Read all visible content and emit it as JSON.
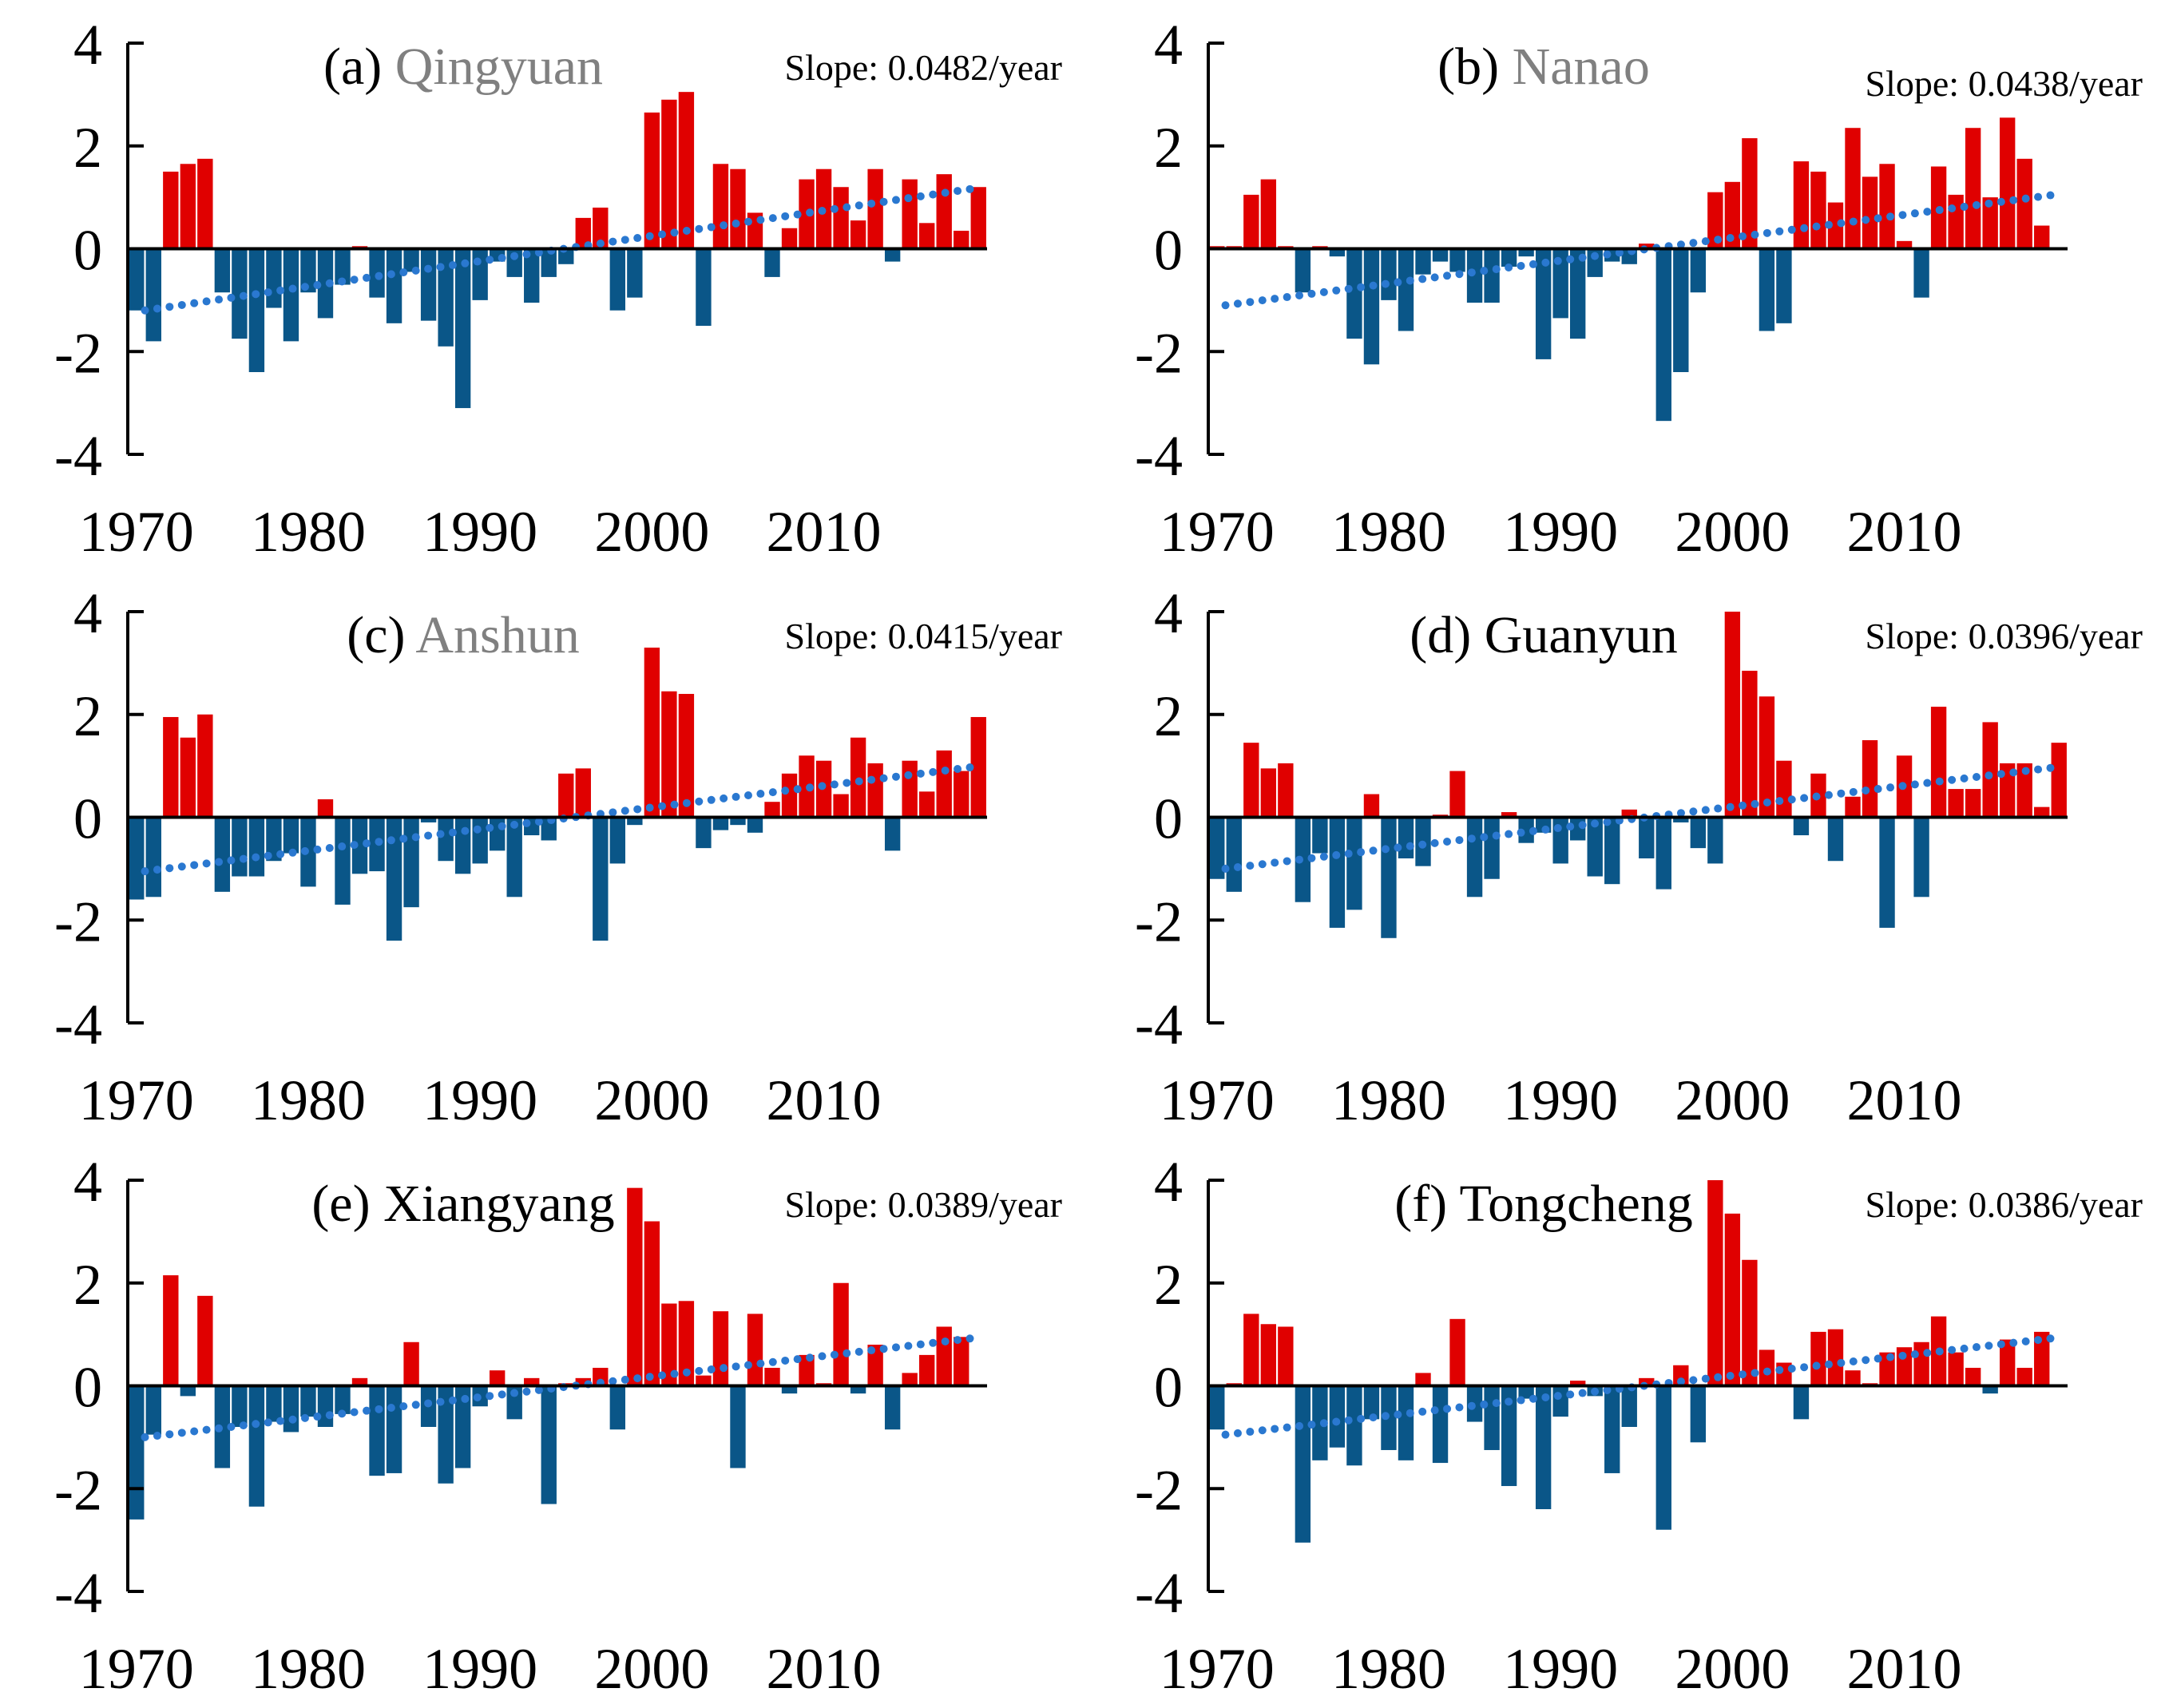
{
  "colors": {
    "positive": "#e00000",
    "negative": "#0a5688",
    "trend": "#2a78d0",
    "axis": "#000000",
    "station_gray": "#808080",
    "text": "#000000"
  },
  "chart_data": [
    {
      "type": "bar",
      "panel": "(a)",
      "station": "Qingyuan",
      "station_color": "#808080",
      "slope_label": "Slope:",
      "slope_value": "0.0482/year",
      "x_start": 1970,
      "ylim": [
        -4,
        4
      ],
      "yticks": [
        4,
        2,
        0,
        -2,
        -4
      ],
      "xticks": [
        1970,
        1980,
        1990,
        2000,
        2010
      ],
      "values": [
        -1.2,
        -1.8,
        1.5,
        1.65,
        1.75,
        -0.85,
        -1.75,
        -2.4,
        -1.15,
        -1.8,
        -0.85,
        -1.35,
        -0.7,
        0.05,
        -0.95,
        -1.45,
        -0.45,
        -1.4,
        -1.9,
        -3.1,
        -1.0,
        -0.25,
        -0.55,
        -1.05,
        -0.55,
        -0.3,
        0.6,
        0.8,
        -1.2,
        -0.95,
        2.65,
        2.9,
        3.05,
        -1.5,
        1.65,
        1.55,
        0.7,
        -0.55,
        0.4,
        1.35,
        1.55,
        1.2,
        0.55,
        1.55,
        -0.25,
        1.35,
        0.5,
        1.45,
        0.35,
        1.2
      ],
      "trend": [
        -1.2,
        1.16
      ]
    },
    {
      "type": "bar",
      "panel": "(b)",
      "station": "Nanao",
      "station_color": "#808080",
      "slope_label": "Slope:",
      "slope_value": "0.0438/year",
      "x_start": 1970,
      "ylim": [
        -4,
        4
      ],
      "yticks": [
        4,
        2,
        0,
        -2,
        -4
      ],
      "xticks": [
        1970,
        1980,
        1990,
        2000,
        2010
      ],
      "values": [
        0.05,
        0.05,
        1.05,
        1.35,
        0.05,
        -0.85,
        0.05,
        -0.15,
        -1.75,
        -2.25,
        -1.0,
        -1.6,
        -0.5,
        -0.25,
        -0.45,
        -1.05,
        -1.05,
        -0.35,
        -0.15,
        -2.15,
        -1.35,
        -1.75,
        -0.55,
        -0.25,
        -0.3,
        0.1,
        -3.35,
        -2.4,
        -0.85,
        1.1,
        1.3,
        2.15,
        -1.6,
        -1.45,
        1.7,
        1.5,
        0.9,
        2.35,
        1.4,
        1.65,
        0.15,
        -0.95,
        1.6,
        1.05,
        2.35,
        1.0,
        2.55,
        1.75,
        0.45,
        0.0
      ],
      "trend": [
        -1.1,
        1.04
      ]
    },
    {
      "type": "bar",
      "panel": "(c)",
      "station": "Anshun",
      "station_color": "#808080",
      "slope_label": "Slope:",
      "slope_value": "0.0415/year",
      "x_start": 1970,
      "ylim": [
        -4,
        4
      ],
      "yticks": [
        4,
        2,
        0,
        -2,
        -4
      ],
      "xticks": [
        1970,
        1980,
        1990,
        2000,
        2010
      ],
      "values": [
        -1.6,
        -1.55,
        1.95,
        1.55,
        2.0,
        -1.45,
        -1.15,
        -1.15,
        -0.85,
        -0.7,
        -1.35,
        0.35,
        -1.7,
        -1.1,
        -1.05,
        -2.4,
        -1.75,
        -0.1,
        -0.85,
        -1.1,
        -0.9,
        -0.65,
        -1.55,
        -0.35,
        -0.45,
        0.85,
        0.95,
        -2.4,
        -0.9,
        -0.15,
        3.3,
        2.45,
        2.4,
        -0.6,
        -0.25,
        -0.15,
        -0.3,
        0.3,
        0.85,
        1.2,
        1.1,
        0.45,
        1.55,
        1.05,
        -0.65,
        1.1,
        0.5,
        1.3,
        0.9,
        1.95
      ],
      "trend": [
        -1.05,
        0.97
      ]
    },
    {
      "type": "bar",
      "panel": "(d)",
      "station": "Guanyun",
      "station_color": "#000000",
      "slope_label": "Slope:",
      "slope_value": "0.0396/year",
      "x_start": 1970,
      "ylim": [
        -4,
        4
      ],
      "yticks": [
        4,
        2,
        0,
        -2,
        -4
      ],
      "xticks": [
        1970,
        1980,
        1990,
        2000,
        2010
      ],
      "values": [
        -1.2,
        -1.45,
        1.45,
        0.95,
        1.05,
        -1.65,
        -0.7,
        -2.15,
        -1.8,
        0.45,
        -2.35,
        -0.8,
        -0.95,
        0.05,
        0.9,
        -1.55,
        -1.2,
        0.1,
        -0.5,
        -0.3,
        -0.9,
        -0.45,
        -1.15,
        -1.3,
        0.15,
        -0.8,
        -1.4,
        -0.1,
        -0.6,
        -0.9,
        4.0,
        2.85,
        2.35,
        1.1,
        -0.35,
        0.85,
        -0.85,
        0.4,
        1.5,
        -2.15,
        1.2,
        -1.55,
        2.15,
        0.55,
        0.55,
        1.85,
        1.05,
        1.05,
        0.2,
        1.45
      ],
      "trend": [
        -1.0,
        0.96
      ]
    },
    {
      "type": "bar",
      "panel": "(e)",
      "station": "Xiangyang",
      "station_color": "#000000",
      "slope_label": "Slope:",
      "slope_value": "0.0389/year",
      "x_start": 1970,
      "ylim": [
        -4,
        4
      ],
      "yticks": [
        4,
        2,
        0,
        -2,
        -4
      ],
      "xticks": [
        1970,
        1980,
        1990,
        2000,
        2010
      ],
      "values": [
        -2.6,
        -0.95,
        2.15,
        -0.2,
        1.75,
        -1.6,
        -0.8,
        -2.35,
        -0.7,
        -0.9,
        -0.6,
        -0.8,
        -0.55,
        0.15,
        -1.75,
        -1.7,
        0.85,
        -0.8,
        -1.9,
        -1.6,
        -0.4,
        0.3,
        -0.65,
        0.15,
        -2.3,
        0.05,
        0.15,
        0.35,
        -0.85,
        3.85,
        3.2,
        1.6,
        1.65,
        0.2,
        1.45,
        -1.6,
        1.4,
        0.35,
        -0.15,
        0.6,
        0.05,
        2.0,
        -0.15,
        0.8,
        -0.85,
        0.25,
        0.6,
        1.15,
        0.95,
        0.0
      ],
      "trend": [
        -1.0,
        0.92
      ]
    },
    {
      "type": "bar",
      "panel": "(f)",
      "station": "Tongcheng",
      "station_color": "#000000",
      "slope_label": "Slope:",
      "slope_value": "0.0386/year",
      "x_start": 1970,
      "ylim": [
        -4,
        4
      ],
      "yticks": [
        4,
        2,
        0,
        -2,
        -4
      ],
      "xticks": [
        1970,
        1980,
        1990,
        2000,
        2010
      ],
      "values": [
        -0.85,
        0.05,
        1.4,
        1.2,
        1.15,
        -3.05,
        -1.45,
        -1.2,
        -1.55,
        -0.65,
        -1.25,
        -1.45,
        0.25,
        -1.5,
        1.3,
        -0.7,
        -1.25,
        -1.95,
        -0.25,
        -2.4,
        -0.6,
        0.1,
        -0.2,
        -1.7,
        -0.8,
        0.15,
        -2.8,
        0.4,
        -1.1,
        4.0,
        3.35,
        2.45,
        0.7,
        0.45,
        -0.65,
        1.05,
        1.1,
        0.3,
        0.05,
        0.65,
        0.75,
        0.85,
        1.35,
        0.65,
        0.35,
        -0.15,
        0.9,
        0.35,
        1.05,
        0.0
      ],
      "trend": [
        -0.95,
        0.92
      ]
    }
  ]
}
